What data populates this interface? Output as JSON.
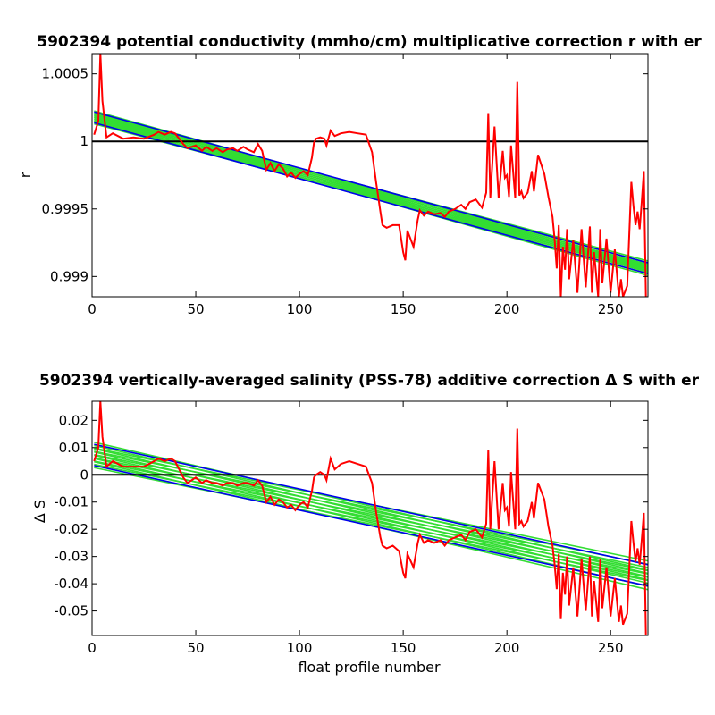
{
  "chart_data": [
    {
      "type": "line",
      "title": "5902394 potential conductivity (mmho/cm) multiplicative correction r with er",
      "xlabel": "",
      "ylabel": "r",
      "xlim": [
        0,
        268
      ],
      "ylim": [
        0.99885,
        1.00065
      ],
      "xticks": [
        0,
        50,
        100,
        150,
        200,
        250
      ],
      "xtick_labels": [
        "0",
        "50",
        "100",
        "150",
        "200",
        "250"
      ],
      "yticks": [
        0.999,
        0.9995,
        1,
        1.0005
      ],
      "ytick_labels": [
        "0.999",
        "0.9995",
        "1",
        "1.0005"
      ],
      "reference_line": 1,
      "fit": {
        "x": [
          1,
          268
        ],
        "y": [
          1.000178,
          0.999061
        ],
        "error_half_width": 4e-05
      },
      "series": [
        {
          "x": [
            1,
            3,
            4,
            5,
            7,
            10,
            15,
            20,
            25,
            30,
            32,
            35,
            38,
            40,
            42,
            44,
            46,
            48,
            50,
            53,
            55,
            58,
            60,
            63,
            65,
            68,
            70,
            73,
            75,
            78,
            80,
            82,
            84,
            86,
            88,
            90,
            92,
            94,
            96,
            98,
            100,
            102,
            104,
            106,
            107,
            108,
            110,
            112,
            113,
            115,
            117,
            120,
            124,
            128,
            132,
            135,
            137,
            139,
            140,
            142,
            145,
            148,
            150,
            151,
            152,
            155,
            157,
            158,
            160,
            162,
            165,
            168,
            170,
            172,
            175,
            178,
            180,
            182,
            185,
            188,
            190,
            191,
            192,
            194,
            196,
            198,
            199,
            200,
            201,
            202,
            204,
            205,
            206,
            207,
            208,
            210,
            212,
            213,
            215,
            218,
            220,
            222,
            223,
            224,
            225,
            226,
            227,
            228,
            229,
            230,
            232,
            234,
            236,
            238,
            240,
            241,
            242,
            244,
            245,
            246,
            248,
            250,
            252,
            254,
            255,
            256,
            258,
            260,
            261,
            262,
            263,
            264,
            265,
            266,
            267
          ],
          "y": [
            1.00005,
            1.00015,
            1.00065,
            1.0003,
            1.00003,
            1.00006,
            1.00002,
            1.00003,
            1.00002,
            1.00005,
            1.00007,
            1.00005,
            1.00007,
            1.00006,
            1.00002,
            0.99998,
            0.99995,
            0.99996,
            0.99997,
            0.99993,
            0.99996,
            0.99993,
            0.99995,
            0.99992,
            0.99994,
            0.99995,
            0.99993,
            0.99996,
            0.99994,
            0.99992,
            0.99998,
            0.99993,
            0.99979,
            0.99984,
            0.99978,
            0.99983,
            0.9998,
            0.99974,
            0.99977,
            0.99973,
            0.99976,
            0.99978,
            0.99975,
            0.99988,
            0.99999,
            1.00002,
            1.00003,
            1.00002,
            0.99997,
            1.00008,
            1.00004,
            1.00006,
            1.00007,
            1.00006,
            1.00005,
            0.99992,
            0.99969,
            0.99948,
            0.99938,
            0.99936,
            0.99938,
            0.99938,
            0.99918,
            0.99912,
            0.99934,
            0.99922,
            0.99942,
            0.99949,
            0.99945,
            0.99948,
            0.99946,
            0.99947,
            0.99944,
            0.99948,
            0.9995,
            0.99953,
            0.9995,
            0.99955,
            0.99957,
            0.99951,
            0.99962,
            1.00021,
            0.99958,
            1.00011,
            0.99958,
            0.99993,
            0.99973,
            0.99975,
            0.99959,
            0.99997,
            0.99958,
            1.00044,
            0.9996,
            0.99963,
            0.99958,
            0.99962,
            0.99978,
            0.99963,
            0.9999,
            0.99976,
            0.99959,
            0.99944,
            0.99927,
            0.99906,
            0.99938,
            0.99885,
            0.99922,
            0.99905,
            0.99935,
            0.99898,
            0.99927,
            0.99888,
            0.99935,
            0.99892,
            0.99937,
            0.99888,
            0.99918,
            0.99885,
            0.99935,
            0.99895,
            0.99928,
            0.99888,
            0.9992,
            0.99885,
            0.99898,
            0.99885,
            0.99893,
            0.9997,
            0.99952,
            0.99938,
            0.99948,
            0.99935,
            0.99955,
            0.99978,
            0.99885
          ]
        }
      ]
    },
    {
      "type": "line",
      "title": "5902394 vertically-averaged salinity (PSS-78) additive correction Δ S with er",
      "xlabel": "float profile number",
      "ylabel": "Δ S",
      "xlim": [
        0,
        268
      ],
      "ylim": [
        -0.059,
        0.027
      ],
      "xticks": [
        0,
        50,
        100,
        150,
        200,
        250
      ],
      "xtick_labels": [
        "0",
        "50",
        "100",
        "150",
        "200",
        "250"
      ],
      "yticks": [
        0.02,
        0.01,
        0,
        -0.01,
        -0.02,
        -0.03,
        -0.04,
        -0.05
      ],
      "ytick_labels": [
        "0.02",
        "0.01",
        "0",
        "-0.01",
        "-0.02",
        "-0.03",
        "-0.04",
        "-0.05"
      ],
      "reference_line": 0,
      "fit": {
        "x": [
          1,
          268
        ],
        "y": [
          0.0073,
          -0.0369
        ],
        "error_half_width": 0.0039
      },
      "series": [
        {
          "x": [
            1,
            3,
            4,
            5,
            7,
            10,
            15,
            20,
            25,
            30,
            32,
            35,
            38,
            40,
            42,
            44,
            46,
            48,
            50,
            53,
            55,
            58,
            60,
            63,
            65,
            68,
            70,
            73,
            75,
            78,
            80,
            82,
            84,
            86,
            88,
            90,
            92,
            94,
            96,
            98,
            100,
            102,
            104,
            106,
            107,
            108,
            110,
            112,
            113,
            115,
            117,
            120,
            124,
            128,
            132,
            135,
            137,
            139,
            140,
            142,
            145,
            148,
            150,
            151,
            152,
            155,
            157,
            158,
            160,
            162,
            165,
            168,
            170,
            172,
            175,
            178,
            180,
            182,
            185,
            188,
            190,
            191,
            192,
            194,
            196,
            198,
            199,
            200,
            201,
            202,
            204,
            205,
            206,
            207,
            208,
            210,
            212,
            213,
            215,
            218,
            220,
            222,
            223,
            224,
            225,
            226,
            227,
            228,
            229,
            230,
            232,
            234,
            236,
            238,
            240,
            241,
            242,
            244,
            245,
            246,
            248,
            250,
            252,
            254,
            255,
            256,
            258,
            260,
            261,
            262,
            263,
            264,
            265,
            266,
            267
          ],
          "y": [
            0.005,
            0.01,
            0.027,
            0.014,
            0.003,
            0.005,
            0.003,
            0.003,
            0.003,
            0.005,
            0.006,
            0.005,
            0.006,
            0.005,
            0.002,
            -0.001,
            -0.003,
            -0.002,
            -0.001,
            -0.003,
            -0.002,
            -0.003,
            -0.003,
            -0.004,
            -0.003,
            -0.003,
            -0.004,
            -0.003,
            -0.003,
            -0.004,
            -0.002,
            -0.004,
            -0.01,
            -0.008,
            -0.011,
            -0.009,
            -0.01,
            -0.012,
            -0.011,
            -0.013,
            -0.011,
            -0.01,
            -0.012,
            -0.006,
            -0.001,
            0.0,
            0.001,
            0.0,
            -0.002,
            0.006,
            0.002,
            0.004,
            0.005,
            0.004,
            0.003,
            -0.003,
            -0.014,
            -0.023,
            -0.026,
            -0.027,
            -0.026,
            -0.028,
            -0.036,
            -0.038,
            -0.029,
            -0.034,
            -0.025,
            -0.022,
            -0.025,
            -0.024,
            -0.025,
            -0.024,
            -0.026,
            -0.024,
            -0.023,
            -0.022,
            -0.024,
            -0.021,
            -0.02,
            -0.023,
            -0.018,
            0.009,
            -0.02,
            0.005,
            -0.02,
            -0.003,
            -0.013,
            -0.012,
            -0.019,
            0.001,
            -0.02,
            0.017,
            -0.018,
            -0.017,
            -0.019,
            -0.017,
            -0.01,
            -0.016,
            -0.003,
            -0.009,
            -0.019,
            -0.026,
            -0.033,
            -0.042,
            -0.029,
            -0.053,
            -0.036,
            -0.044,
            -0.03,
            -0.048,
            -0.034,
            -0.052,
            -0.031,
            -0.05,
            -0.03,
            -0.052,
            -0.039,
            -0.054,
            -0.031,
            -0.049,
            -0.034,
            -0.052,
            -0.038,
            -0.054,
            -0.048,
            -0.055,
            -0.051,
            -0.017,
            -0.025,
            -0.032,
            -0.027,
            -0.033,
            -0.024,
            -0.014,
            -0.059
          ]
        }
      ]
    }
  ]
}
